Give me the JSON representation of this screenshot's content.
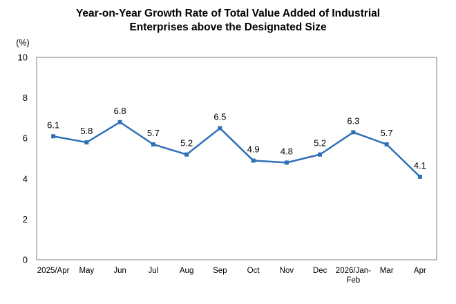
{
  "chart_data": {
    "type": "line",
    "title_line1": "Year-on-Year Growth Rate of Total Value Added of Industrial",
    "title_line2": "Enterprises above the Designated Size",
    "ylabel": "(%)",
    "ylim": [
      0,
      10
    ],
    "yticks": [
      "0",
      "2",
      "4",
      "6",
      "8",
      "10"
    ],
    "ytick_values": [
      0,
      2,
      4,
      6,
      8,
      10
    ],
    "categories": [
      "2025/Apr",
      "May",
      "Jun",
      "Jul",
      "Aug",
      "Sep",
      "Oct",
      "Nov",
      "Dec",
      "2026/Jan-Feb",
      "Mar",
      "Apr"
    ],
    "category_display": [
      [
        "2025/Apr"
      ],
      [
        "May"
      ],
      [
        "Jun"
      ],
      [
        "Jul"
      ],
      [
        "Aug"
      ],
      [
        "Sep"
      ],
      [
        "Oct"
      ],
      [
        "Nov"
      ],
      [
        "Dec"
      ],
      [
        "2026/Jan-",
        "Feb"
      ],
      [
        "Mar"
      ],
      [
        "Apr"
      ]
    ],
    "values": [
      6.1,
      5.8,
      6.8,
      5.7,
      5.2,
      6.5,
      4.9,
      4.8,
      5.2,
      6.3,
      5.7,
      4.1
    ],
    "data_labels": [
      "6.1",
      "5.8",
      "6.8",
      "5.7",
      "5.2",
      "6.5",
      "4.9",
      "4.8",
      "5.2",
      "6.3",
      "5.7",
      "4.1"
    ],
    "line_color": "#2e6fb7",
    "grid": false,
    "legend": false
  }
}
